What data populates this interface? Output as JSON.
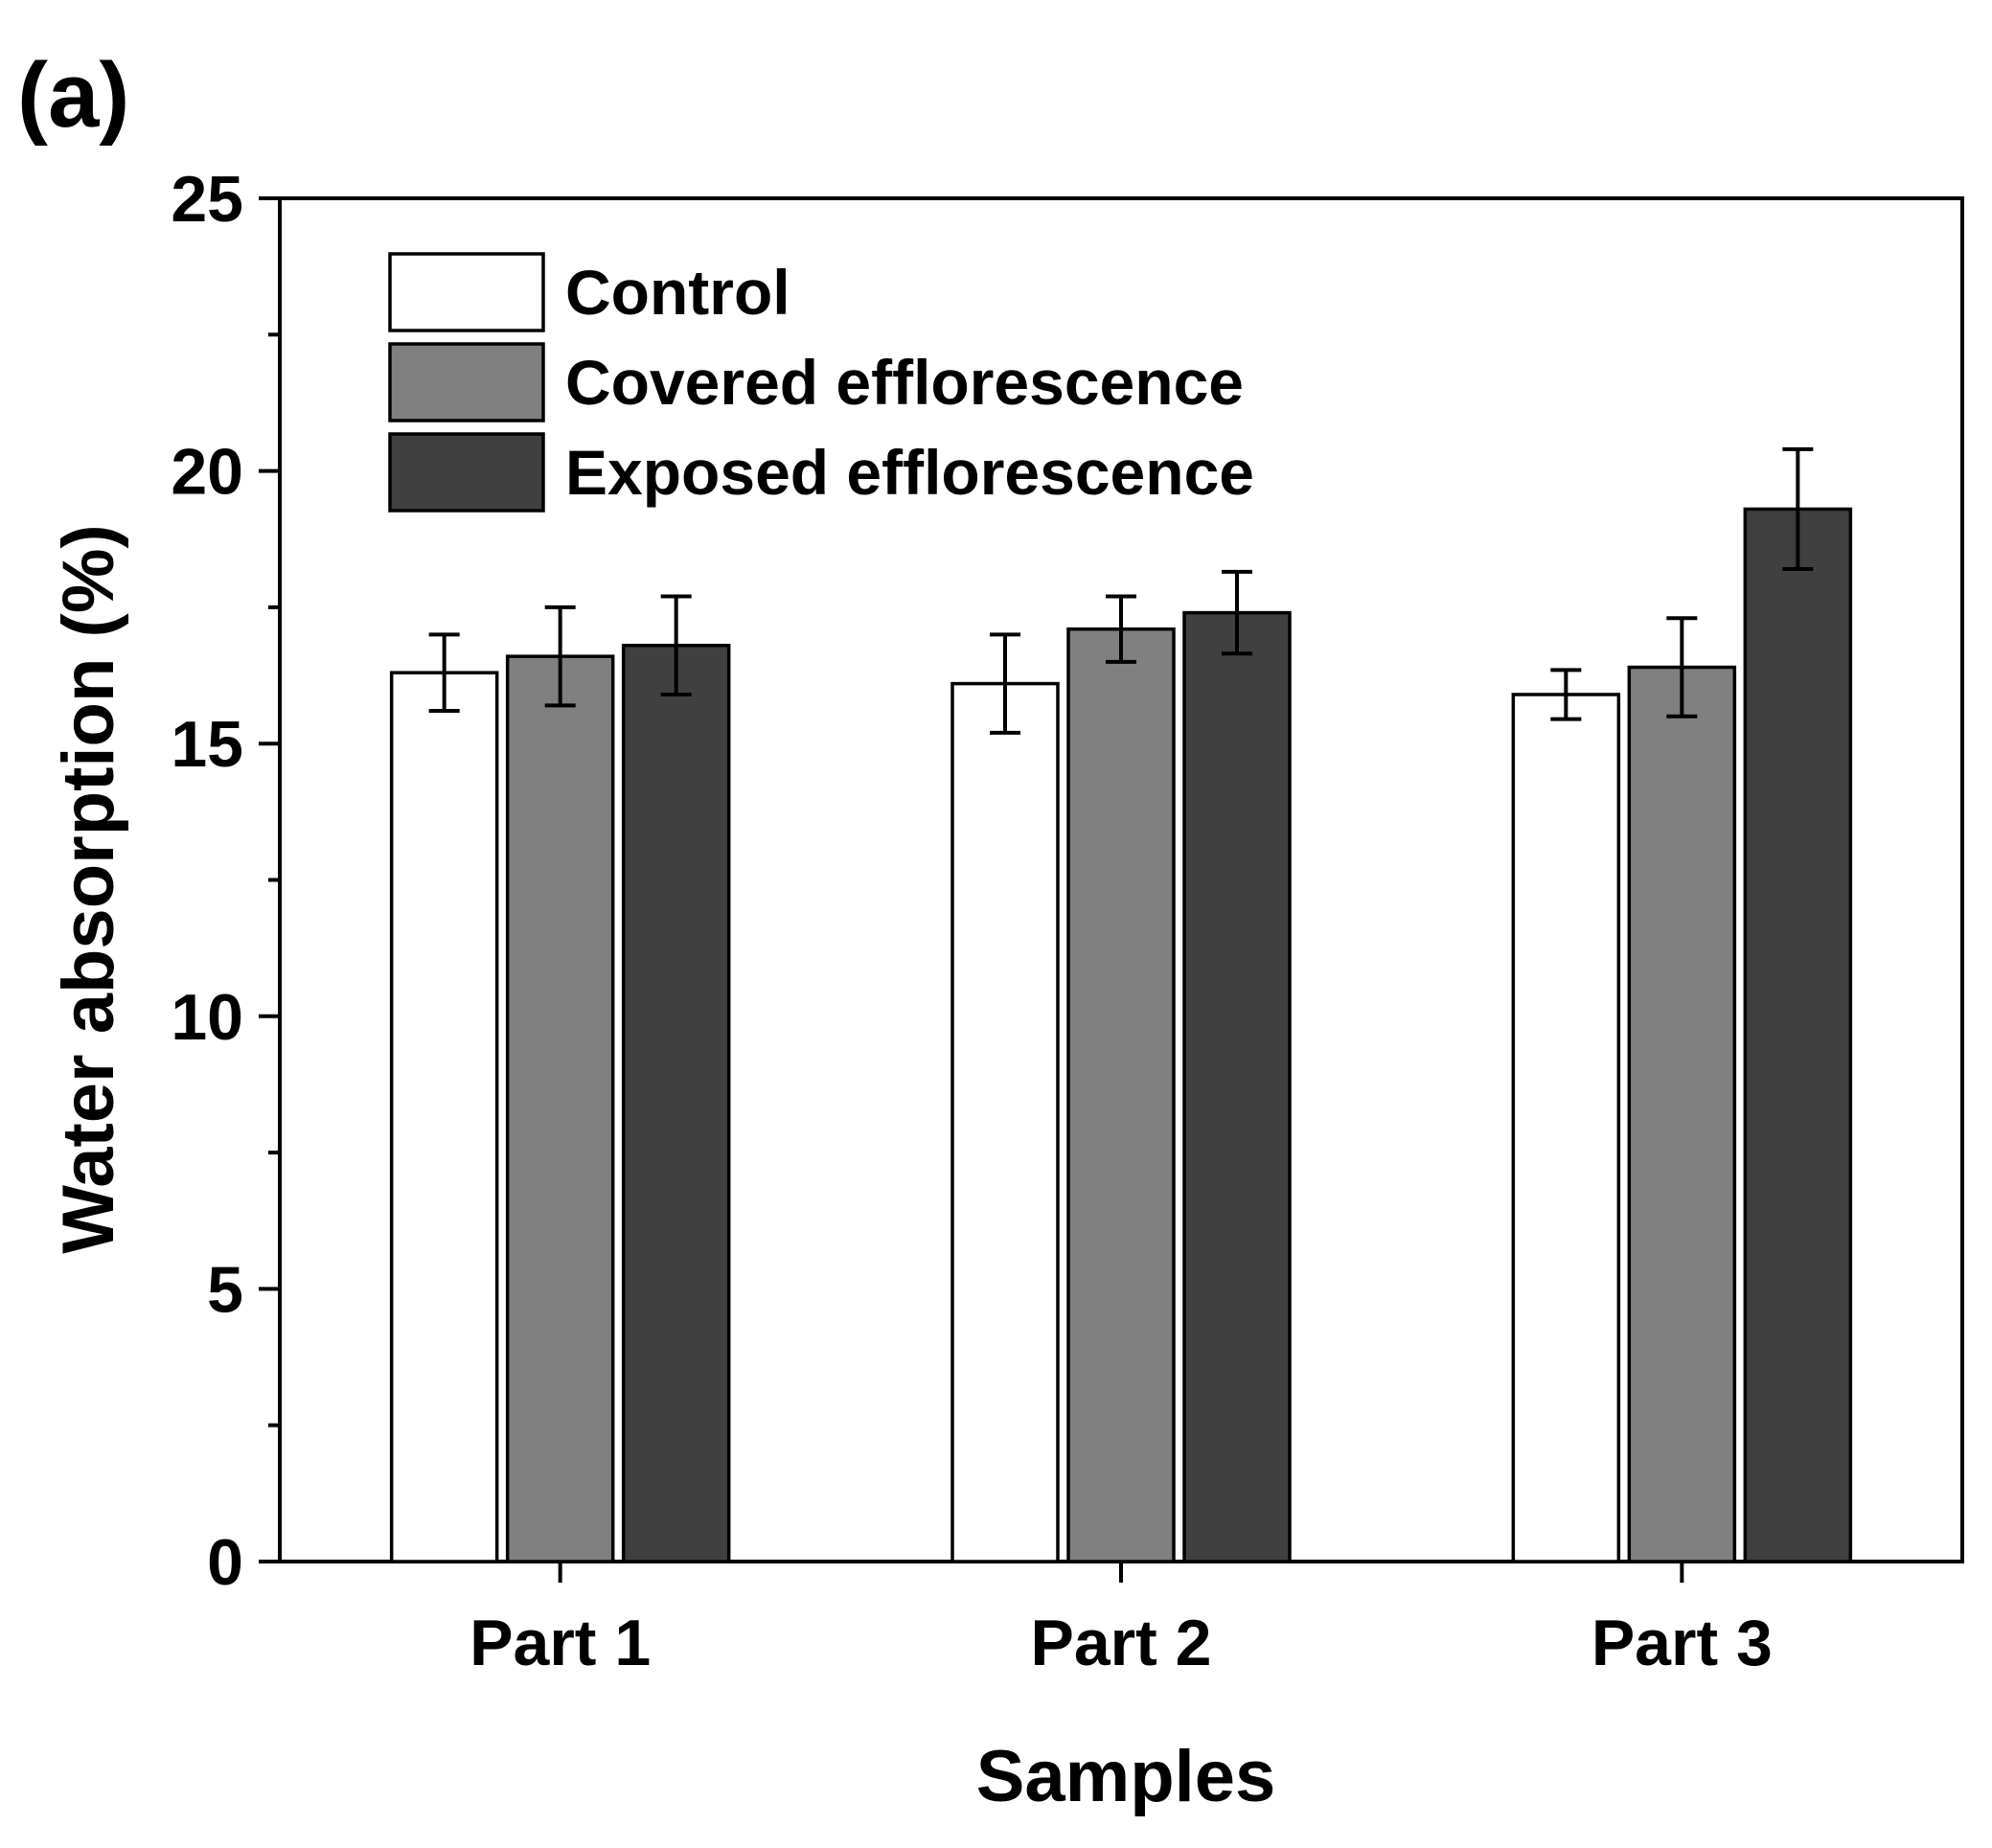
{
  "chart_data": {
    "type": "bar",
    "panel_label": "(a)",
    "title": "",
    "xlabel": "Samples",
    "ylabel": "Water absorption (%)",
    "categories": [
      "Part 1",
      "Part 2",
      "Part 3"
    ],
    "ylim": [
      0,
      25
    ],
    "yticks": [
      0,
      5,
      10,
      15,
      20,
      25
    ],
    "y_minor_step": 2.5,
    "grid": false,
    "legend_position": "top-left",
    "series": [
      {
        "name": "Control",
        "color": "#ffffff",
        "values": [
          16.3,
          16.1,
          15.9
        ],
        "errors": [
          0.7,
          0.9,
          0.45
        ]
      },
      {
        "name": "Covered efflorescence",
        "color": "#808080",
        "values": [
          16.6,
          17.1,
          16.4
        ],
        "errors": [
          0.9,
          0.6,
          0.9
        ]
      },
      {
        "name": "Exposed efflorescence",
        "color": "#404040",
        "values": [
          16.8,
          17.4,
          19.3
        ],
        "errors": [
          0.9,
          0.75,
          1.1
        ]
      }
    ]
  }
}
